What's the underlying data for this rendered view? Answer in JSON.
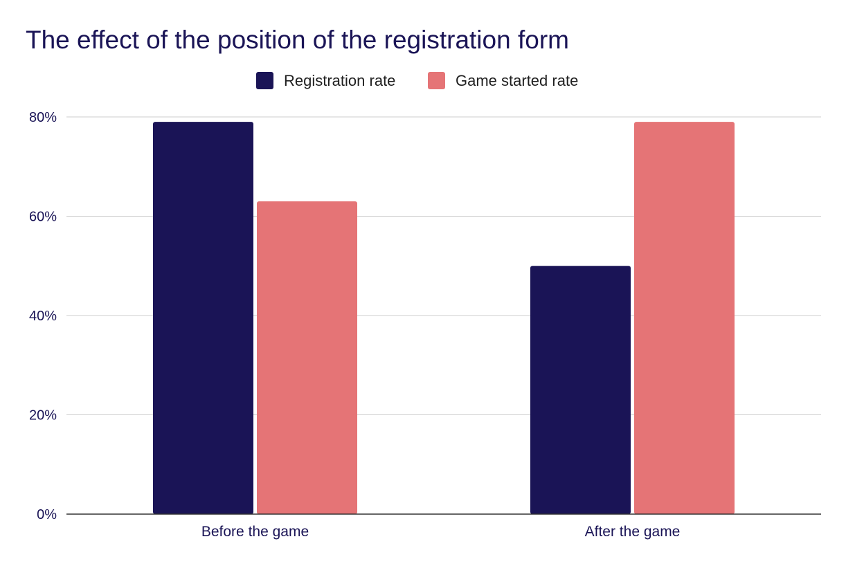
{
  "chart_data": {
    "type": "bar",
    "title": "The effect of the position of the registration form",
    "xlabel": "",
    "ylabel": "",
    "categories": [
      "Before the game",
      "After the game"
    ],
    "series": [
      {
        "name": "Registration rate",
        "values": [
          0.79,
          0.5
        ],
        "color": "#1a1456"
      },
      {
        "name": "Game started rate",
        "values": [
          0.63,
          0.79
        ],
        "color": "#e57476"
      }
    ],
    "ylim": [
      0,
      0.8
    ],
    "y_ticks": [
      {
        "value": 0,
        "label": "0%"
      },
      {
        "value": 0.2,
        "label": "20%"
      },
      {
        "value": 0.4,
        "label": "40%"
      },
      {
        "value": 0.6,
        "label": "60%"
      },
      {
        "value": 0.8,
        "label": "80%"
      }
    ],
    "grid": true,
    "legend_position": "top-center",
    "colors": {
      "title": "#1a1456",
      "axis_text": "#1a1456",
      "gridline": "#cccccc",
      "baseline": "#333333"
    }
  }
}
